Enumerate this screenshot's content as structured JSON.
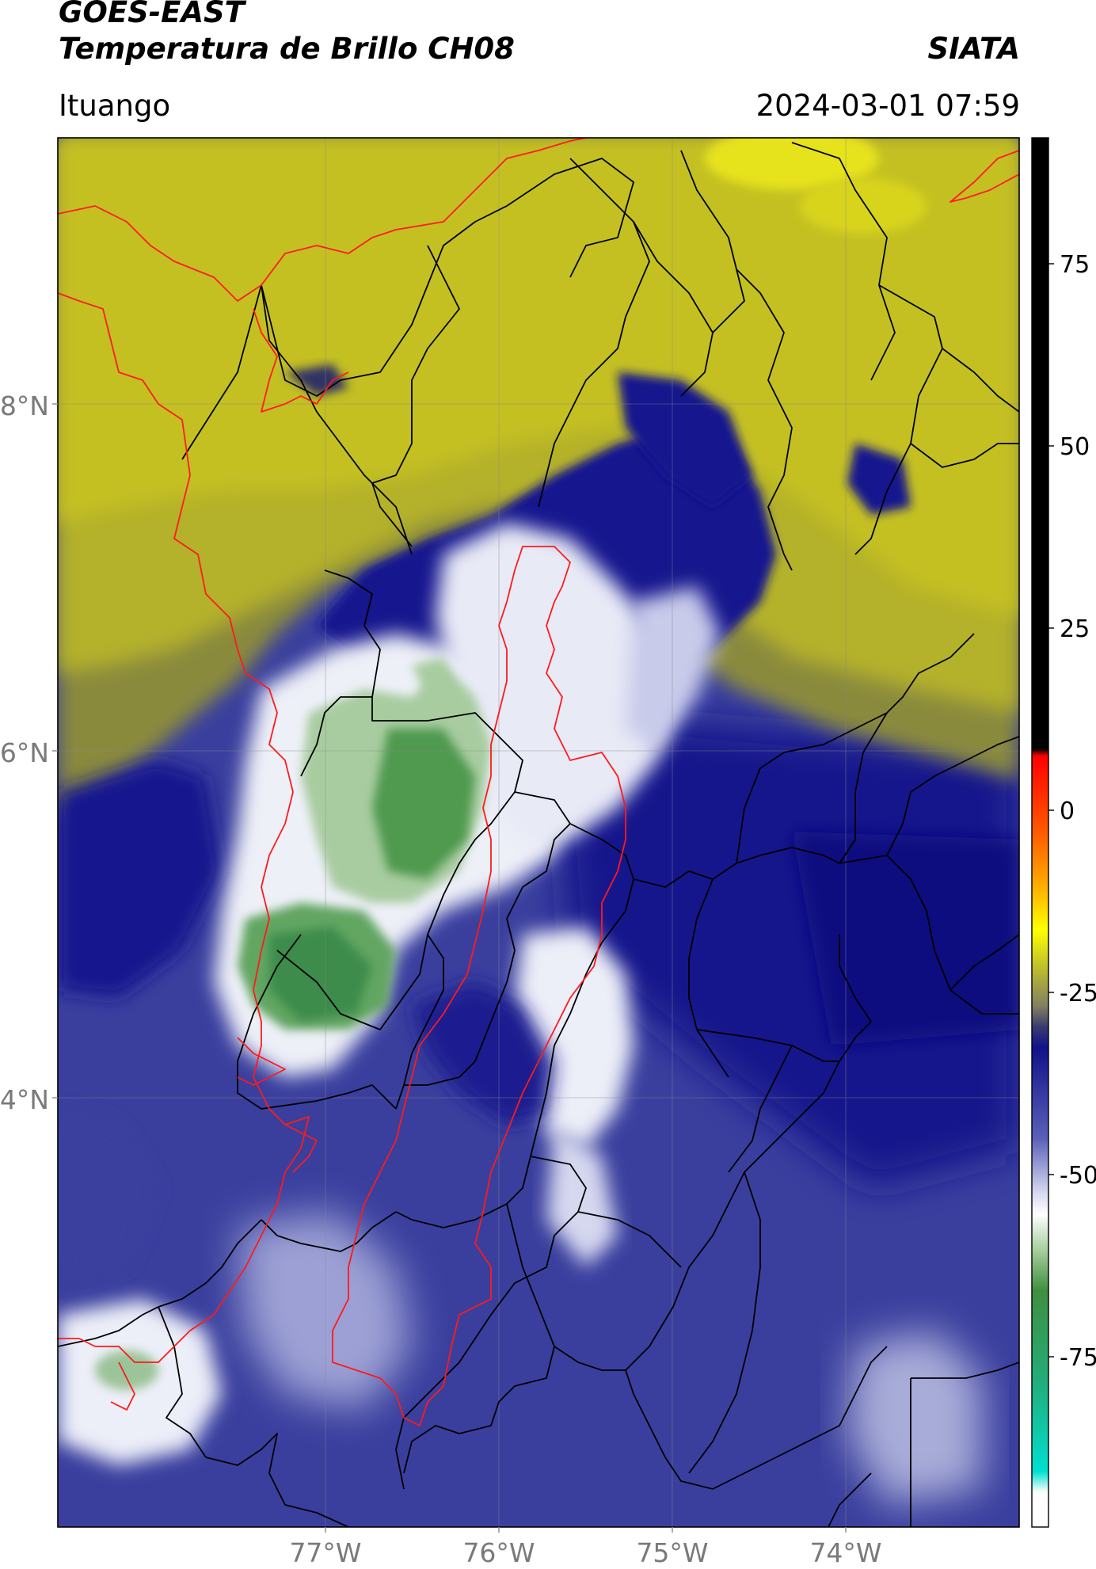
{
  "header": {
    "satellite": "GOES-EAST",
    "product": "Temperatura de Brillo CH08",
    "brand": "SIATA",
    "location": "Ituango",
    "datetime": "2024-03-01 07:59"
  },
  "map": {
    "lat_ticks": [
      "8°N",
      "6°N",
      "4°N"
    ],
    "lon_ticks": [
      "77°W",
      "76°W",
      "75°W",
      "74°W"
    ],
    "colorbar_ticks": [
      "75",
      "50",
      "25",
      "0",
      "-25",
      "-50",
      "-75"
    ],
    "colors": {
      "warm_yellow": "#c7c21a",
      "olive": "#8b8a3c",
      "deep_blue": "#10138a",
      "mid_blue": "#3a3f9e",
      "white_cloud": "#f2f2f6",
      "green_cold": "#3f8f3f",
      "boundary_red": "#ff1a1a",
      "boundary_black": "#000000"
    }
  }
}
